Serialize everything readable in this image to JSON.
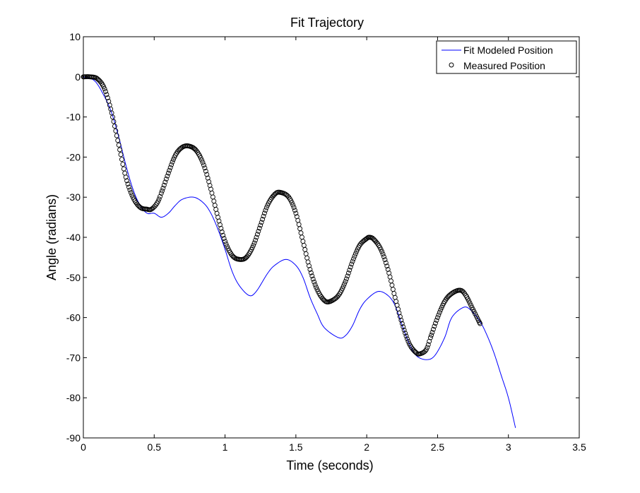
{
  "chart_data": {
    "type": "line",
    "title": "Fit Trajectory",
    "xlabel": "Time (seconds)",
    "ylabel": "Angle (radians)",
    "xlim": [
      0,
      3.5
    ],
    "ylim": [
      -90,
      10
    ],
    "xticks": [
      0,
      0.5,
      1,
      1.5,
      2,
      2.5,
      3,
      3.5
    ],
    "xtick_labels": [
      "0",
      "0.5",
      "1",
      "1.5",
      "2",
      "2.5",
      "3",
      "3.5"
    ],
    "yticks": [
      10,
      0,
      -10,
      -20,
      -30,
      -40,
      -50,
      -60,
      -70,
      -80,
      -90
    ],
    "ytick_labels": [
      "10",
      "0",
      "-10",
      "-20",
      "-30",
      "-40",
      "-50",
      "-60",
      "-70",
      "-80",
      "-90"
    ],
    "grid": false,
    "legend_position": "top-right",
    "series": [
      {
        "name": "Fit Modeled Position",
        "style": "line",
        "color": "#0000ff",
        "x": [
          0,
          0.08,
          0.15,
          0.2,
          0.25,
          0.3,
          0.35,
          0.4,
          0.45,
          0.5,
          0.55,
          0.6,
          0.65,
          0.7,
          0.78,
          0.85,
          0.9,
          0.95,
          1.0,
          1.05,
          1.1,
          1.17,
          1.22,
          1.3,
          1.35,
          1.43,
          1.5,
          1.55,
          1.6,
          1.65,
          1.7,
          1.8,
          1.85,
          1.9,
          1.95,
          2.0,
          2.08,
          2.15,
          2.2,
          2.25,
          2.3,
          2.35,
          2.42,
          2.48,
          2.55,
          2.6,
          2.68,
          2.73,
          2.8,
          2.85,
          2.9,
          2.95,
          3.0,
          3.05
        ],
        "y": [
          0,
          -1,
          -5,
          -9,
          -15,
          -22,
          -28,
          -32,
          -34,
          -34,
          -35,
          -34,
          -32,
          -30.5,
          -30,
          -31.5,
          -34,
          -38,
          -43,
          -48.5,
          -52,
          -54.5,
          -53.5,
          -49,
          -47,
          -45.5,
          -47,
          -50,
          -55,
          -59,
          -62.5,
          -65,
          -64.5,
          -62,
          -58,
          -55.5,
          -53.5,
          -54.5,
          -57,
          -62,
          -66.5,
          -69.5,
          -70.5,
          -69.5,
          -65,
          -60,
          -57.5,
          -58,
          -61,
          -64.5,
          -69,
          -74.5,
          -80,
          -87.5
        ]
      },
      {
        "name": "Measured Position",
        "style": "markers",
        "marker": "circle",
        "color": "#000000",
        "x": [
          0,
          0.05,
          0.1,
          0.15,
          0.2,
          0.25,
          0.3,
          0.35,
          0.4,
          0.45,
          0.48,
          0.52,
          0.55,
          0.6,
          0.65,
          0.7,
          0.75,
          0.8,
          0.85,
          0.9,
          0.95,
          1.0,
          1.05,
          1.1,
          1.15,
          1.2,
          1.25,
          1.3,
          1.35,
          1.39,
          1.45,
          1.5,
          1.55,
          1.6,
          1.65,
          1.7,
          1.74,
          1.8,
          1.85,
          1.9,
          1.95,
          2.0,
          2.02,
          2.05,
          2.1,
          2.15,
          2.2,
          2.25,
          2.3,
          2.35,
          2.38,
          2.42,
          2.45,
          2.5,
          2.55,
          2.6,
          2.66,
          2.7,
          2.75,
          2.8
        ],
        "y": [
          0,
          0,
          -0.5,
          -3,
          -9,
          -17,
          -25,
          -30,
          -32.5,
          -33,
          -33,
          -31.5,
          -29,
          -24,
          -19.5,
          -17.5,
          -17.3,
          -18.5,
          -22,
          -28,
          -35,
          -41,
          -44.5,
          -45.5,
          -45,
          -42,
          -37,
          -32,
          -29.3,
          -28.8,
          -30,
          -34,
          -41,
          -48,
          -53,
          -55.7,
          -56,
          -54.5,
          -51,
          -46,
          -42,
          -40.3,
          -40,
          -40.5,
          -43,
          -48,
          -55,
          -61.5,
          -66.5,
          -68.8,
          -69,
          -68,
          -65,
          -60,
          -56,
          -54,
          -53.2,
          -54.5,
          -58,
          -61.5
        ]
      }
    ]
  }
}
